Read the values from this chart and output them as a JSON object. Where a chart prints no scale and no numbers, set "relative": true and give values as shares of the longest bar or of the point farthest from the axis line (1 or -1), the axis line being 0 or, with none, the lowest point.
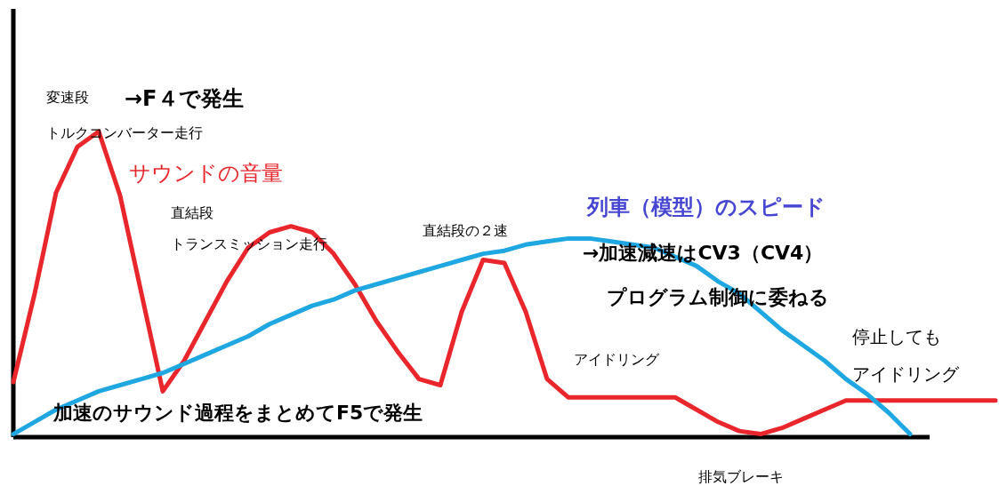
{
  "chart_data": {
    "type": "line",
    "relative": true,
    "categories": [
      null,
      null,
      null,
      null,
      null,
      null,
      null,
      null,
      null,
      null,
      null,
      null,
      null,
      null,
      null,
      null,
      null,
      null,
      null,
      null,
      null,
      null,
      null,
      null,
      null,
      null,
      null,
      null,
      null,
      null,
      null,
      null,
      null,
      null,
      null,
      null,
      null,
      null,
      null,
      null,
      null,
      null,
      null,
      null,
      null,
      null,
      null
    ],
    "series": [
      {
        "name": "サウンドの音量",
        "color": "#e8262b",
        "values": [
          0.18,
          0.47,
          0.8,
          0.95,
          1.0,
          0.79,
          0.47,
          0.15,
          0.25,
          0.38,
          0.51,
          0.62,
          0.67,
          0.69,
          0.67,
          0.6,
          0.5,
          0.38,
          0.28,
          0.19,
          0.17,
          0.41,
          0.58,
          0.57,
          0.41,
          0.19,
          0.13,
          0.13,
          0.13,
          0.13,
          0.13,
          0.13,
          0.09,
          0.05,
          0.02,
          0.01,
          0.03,
          0.06,
          0.09,
          0.12,
          0.12,
          0.12,
          0.12,
          0.12,
          0.12,
          0.12,
          0.12
        ]
      },
      {
        "name": "列車（模型）のスピード",
        "color": "#1ea7e1",
        "values": [
          0.01,
          0.05,
          0.09,
          0.12,
          0.15,
          0.17,
          0.19,
          0.21,
          0.24,
          0.27,
          0.3,
          0.33,
          0.37,
          0.4,
          0.43,
          0.45,
          0.48,
          0.5,
          0.52,
          0.54,
          0.56,
          0.58,
          0.6,
          0.61,
          0.63,
          0.64,
          0.65,
          0.65,
          0.64,
          0.63,
          0.62,
          0.59,
          0.56,
          0.51,
          0.47,
          0.41,
          0.35,
          0.3,
          0.25,
          0.19,
          0.14,
          0.08,
          0.01,
          null,
          null,
          null,
          null
        ]
      }
    ],
    "annotations": [
      "変速段",
      "→F４で発生",
      "トルクコンバーター走行",
      "直結段",
      "トランスミッション走行",
      "直結段の２速",
      "→加速減速はCV3（CV4）",
      "プログラム制御に委ねる",
      "アイドリング",
      "停止しても",
      "アイドリング",
      "加速のサウンド過程をまとめてF5で発生",
      "排気ブレーキ"
    ]
  }
}
